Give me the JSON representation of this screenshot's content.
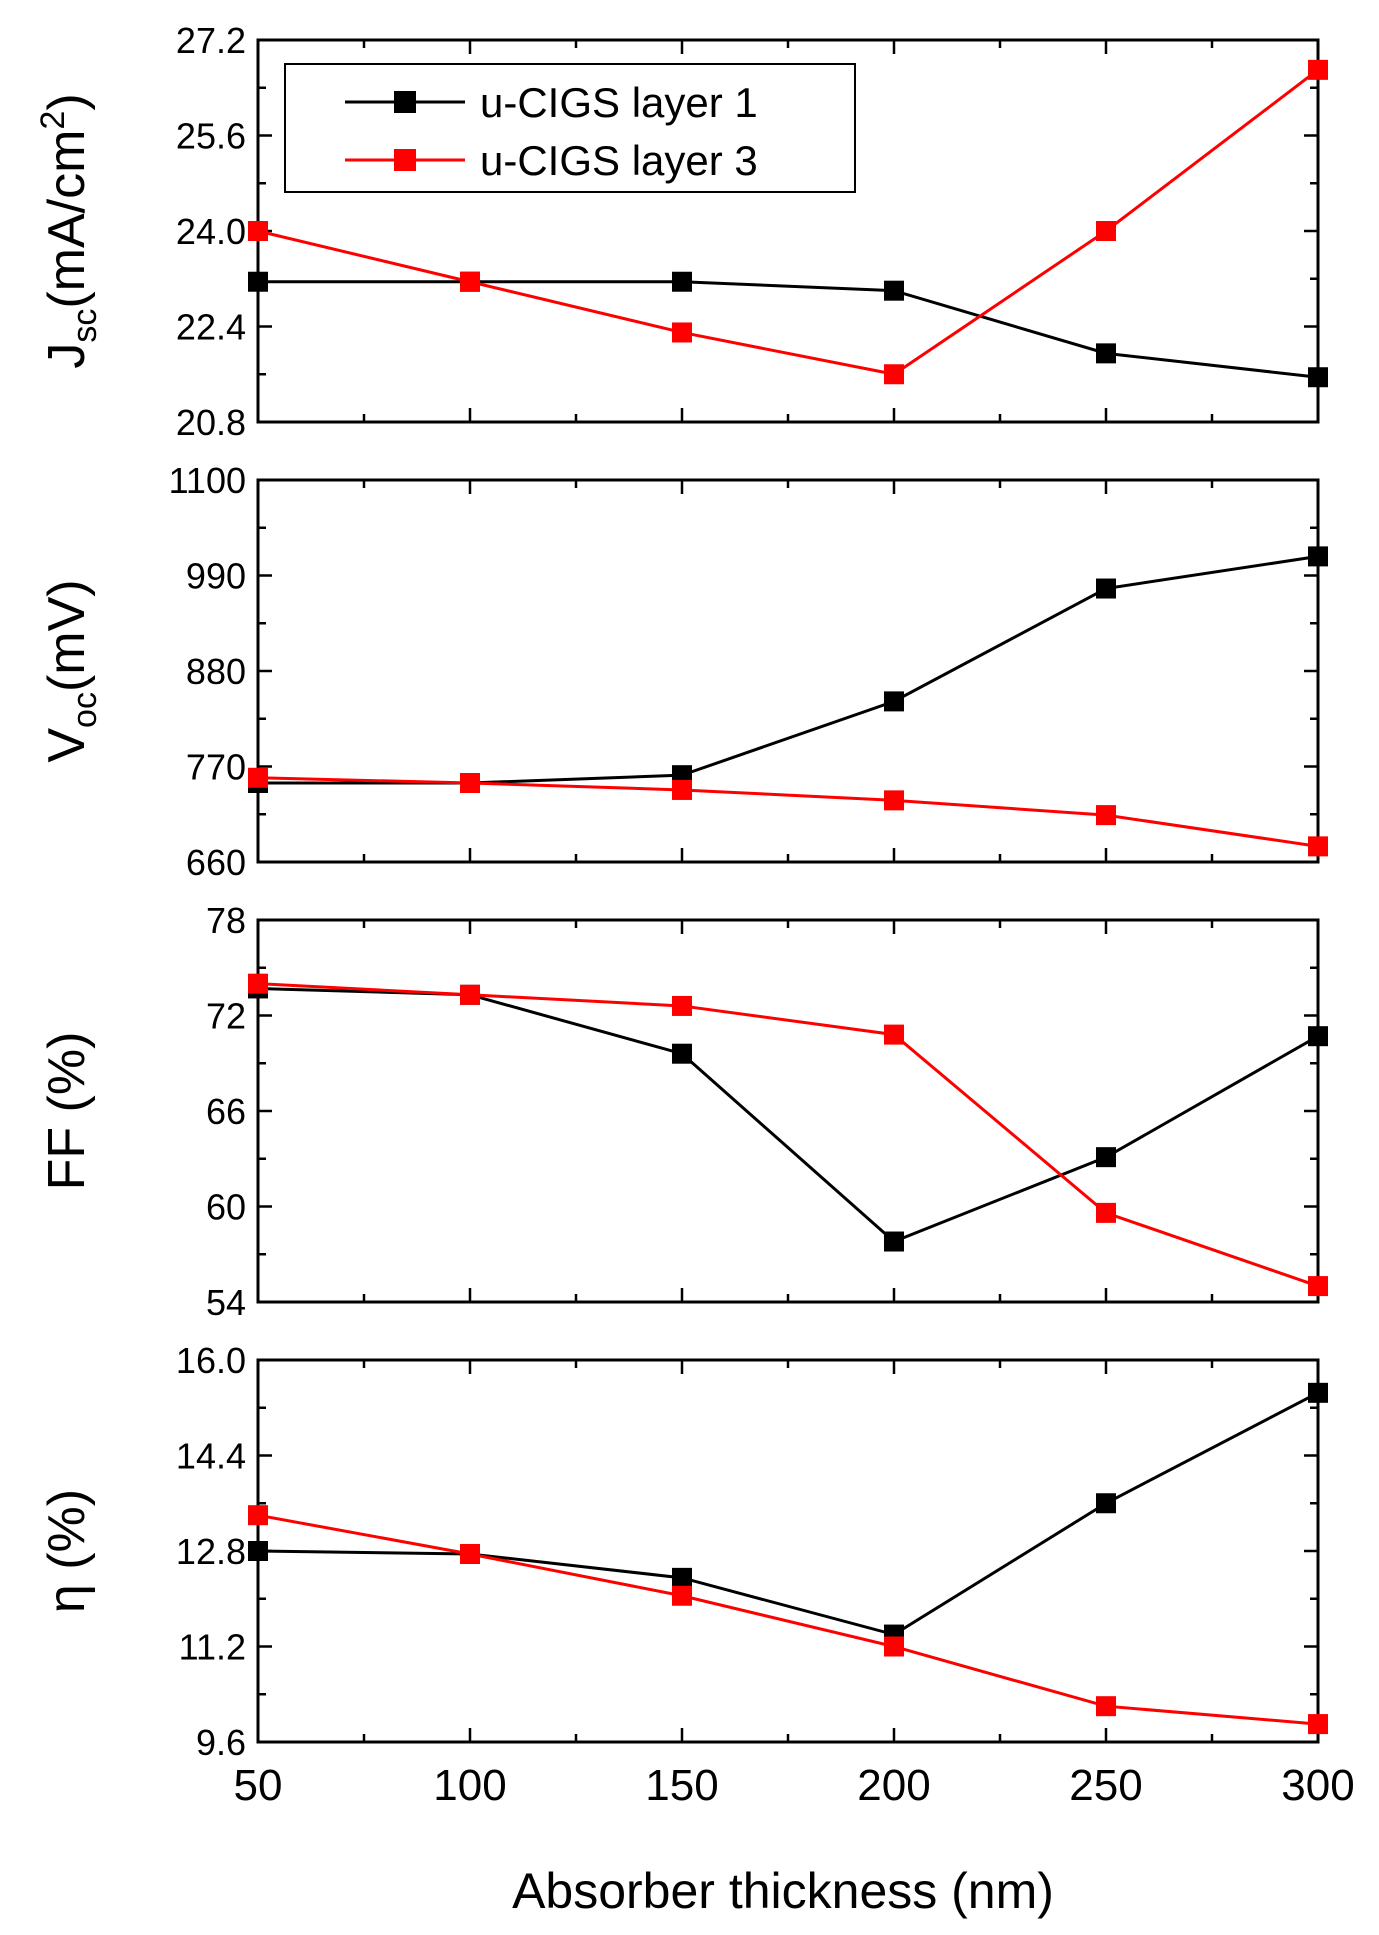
{
  "chart_data": {
    "type": "line",
    "xlabel": "Absorber thickness (nm)",
    "x": [
      50,
      100,
      150,
      200,
      250,
      300
    ],
    "xlim": [
      50,
      300
    ],
    "xticks": [
      "50",
      "100",
      "150",
      "200",
      "250",
      "300"
    ],
    "series_colors": {
      "u-CIGS layer 1": "#000000",
      "u-CIGS layer 3": "#ff0000"
    },
    "legend": {
      "position": "top-left",
      "entries": [
        "u-CIGS layer 1",
        "u-CIGS layer 3"
      ]
    },
    "panels": [
      {
        "id": "jsc",
        "ylabel_main": "J",
        "ylabel_sub": "sc",
        "ylabel_rest": "(mA/cm",
        "ylabel_sup": "2",
        "ylabel_end": ")",
        "ylim": [
          20.8,
          27.2
        ],
        "yticks": [
          "20.8",
          "22.4",
          "24.0",
          "25.6",
          "27.2"
        ],
        "series": [
          {
            "name": "u-CIGS layer 1",
            "values": [
              23.15,
              23.15,
              23.15,
              23.0,
              21.95,
              21.55
            ]
          },
          {
            "name": "u-CIGS layer 3",
            "values": [
              24.0,
              23.15,
              22.3,
              21.6,
              24.0,
              26.7
            ]
          }
        ]
      },
      {
        "id": "voc",
        "ylabel_main": "V",
        "ylabel_sub": "oc",
        "ylabel_rest": "(mV)",
        "ylim": [
          660,
          1100
        ],
        "yticks": [
          "660",
          "770",
          "880",
          "990",
          "1100"
        ],
        "series": [
          {
            "name": "u-CIGS layer 1",
            "values": [
              751,
              751,
              760,
              845,
              975,
              1012
            ]
          },
          {
            "name": "u-CIGS layer 3",
            "values": [
              757,
              751,
              743,
              731,
              714,
              678
            ]
          }
        ]
      },
      {
        "id": "ff",
        "ylabel_main": "FF (%)",
        "ylim": [
          54,
          78
        ],
        "yticks": [
          "54",
          "60",
          "66",
          "72",
          "78"
        ],
        "series": [
          {
            "name": "u-CIGS layer 1",
            "values": [
              73.7,
              73.3,
              69.6,
              57.8,
              63.1,
              70.7
            ]
          },
          {
            "name": "u-CIGS layer 3",
            "values": [
              74.0,
              73.3,
              72.6,
              70.8,
              59.6,
              55.0
            ]
          }
        ]
      },
      {
        "id": "eta",
        "ylabel_main": "η (%)",
        "ylim": [
          9.6,
          16.0
        ],
        "yticks": [
          "9.6",
          "11.2",
          "12.8",
          "14.4",
          "16.0"
        ],
        "series": [
          {
            "name": "u-CIGS layer 1",
            "values": [
              12.8,
              12.75,
              12.35,
              11.4,
              13.6,
              15.45
            ]
          },
          {
            "name": "u-CIGS layer 3",
            "values": [
              13.4,
              12.75,
              12.05,
              11.2,
              10.2,
              9.9
            ]
          }
        ]
      }
    ]
  }
}
